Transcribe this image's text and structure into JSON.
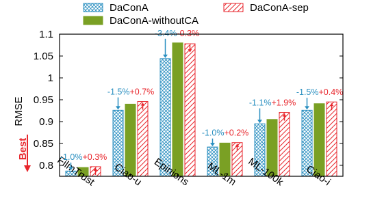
{
  "chart_data": {
    "type": "bar",
    "ylabel": "RMSE",
    "ylim": [
      0.775,
      1.1
    ],
    "yticks": [
      0.8,
      0.85,
      0.9,
      0.95,
      1,
      1.05,
      1.1
    ],
    "ytick_labels": [
      "0.8",
      "0.85",
      "0.9",
      "0.95",
      "1",
      "1.05",
      "1.1"
    ],
    "categories": [
      "FilmTrust",
      "Ciao-u",
      "Epinions",
      "ML-1m",
      "ML-100k",
      "Ciao-i"
    ],
    "series": [
      {
        "name": "DaConA",
        "values": [
          0.787,
          0.926,
          1.044,
          0.842,
          0.895,
          0.926
        ]
      },
      {
        "name": "DaConA-withoutCA",
        "values": [
          0.795,
          0.94,
          1.08,
          0.851,
          0.905,
          0.941
        ]
      },
      {
        "name": "DaConA-sep",
        "values": [
          0.797,
          0.946,
          1.078,
          0.852,
          0.921,
          0.945
        ]
      }
    ],
    "annotations": {
      "vs_without": [
        "-1.0%",
        "-1.5%",
        "-3.4%",
        "-1.0%",
        "-1.1%",
        "-1.5%"
      ],
      "vs_sep": [
        "+0.3%",
        "+0.7%",
        "-0.3%",
        "+0.2%",
        "+1.9%",
        "+0.4%"
      ]
    },
    "best_label": "Best",
    "legend_placement": "top",
    "grid": false
  },
  "colors": {
    "daconA": "#2a8fc0",
    "without": "#7aa024",
    "sep": "#e8262c",
    "best": "#e8262c"
  }
}
